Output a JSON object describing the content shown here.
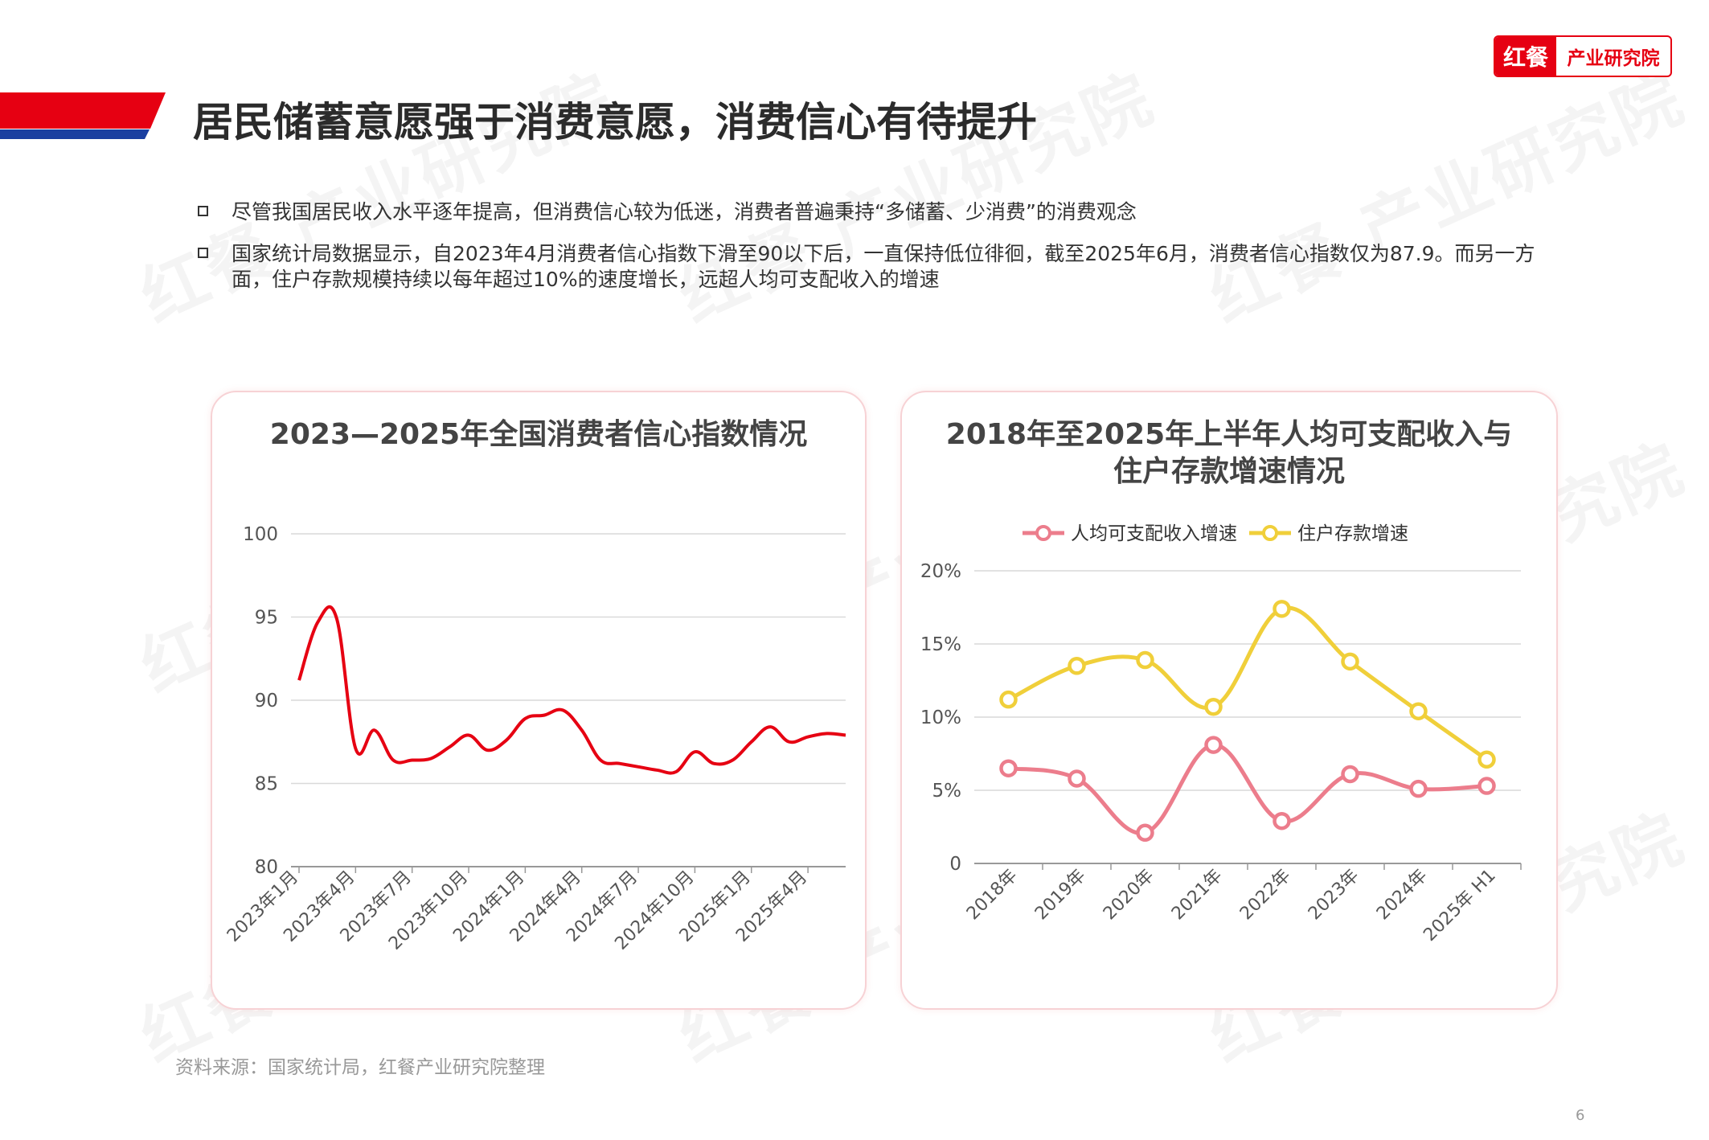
{
  "logo": {
    "badge": "红餐",
    "text": "产业研究院"
  },
  "watermark": {
    "badge": "红餐",
    "text": "产业研究院"
  },
  "page_title": "居民储蓄意愿强于消费意愿，消费信心有待提升",
  "bullets": [
    "尽管我国居民收入水平逐年提高，但消费信心较为低迷，消费者普遍秉持“多储蓄、少消费”的消费观念",
    "国家统计局数据显示，自2023年4月消费者信心指数下滑至90以下后，一直保持低位徘徊，截至2025年6月，消费者信心指数仅为87.9。而另一方面，住户存款规模持续以每年超过10%的速度增长，远超人均可支配收入的增速"
  ],
  "source": "资料来源：国家统计局，红餐产业研究院整理",
  "page_number": "6",
  "colors": {
    "brand_red": "#e60012",
    "brand_blue": "#1a3fa0",
    "line_red": "#e60012",
    "income_pink": "#ec7d8c",
    "deposit_yellow": "#f0cf3a"
  },
  "chart_data": [
    {
      "type": "line",
      "title": "2023—2025年全国消费者信心指数情况",
      "ylim": [
        80,
        100
      ],
      "yticks": [
        "100",
        "95",
        "90",
        "85",
        "80"
      ],
      "xtick_labels": [
        "2023年1月",
        "2023年4月",
        "2023年7月",
        "2023年10月",
        "2024年1月",
        "2024年4月",
        "2024年7月",
        "2024年10月",
        "2025年1月",
        "2025年4月"
      ],
      "x": [
        "2023-01",
        "2023-02",
        "2023-03",
        "2023-04",
        "2023-05",
        "2023-06",
        "2023-07",
        "2023-08",
        "2023-09",
        "2023-10",
        "2023-11",
        "2023-12",
        "2024-01",
        "2024-02",
        "2024-03",
        "2024-04",
        "2024-05",
        "2024-06",
        "2024-07",
        "2024-08",
        "2024-09",
        "2024-10",
        "2024-11",
        "2024-12",
        "2025-01",
        "2025-02",
        "2025-03",
        "2025-04",
        "2025-05",
        "2025-06"
      ],
      "series": [
        {
          "values": [
            91.2,
            94.7,
            94.9,
            87.1,
            88.2,
            86.4,
            86.4,
            86.5,
            87.2,
            87.9,
            87.0,
            87.6,
            88.9,
            89.1,
            89.4,
            88.2,
            86.4,
            86.2,
            86.0,
            85.8,
            85.7,
            86.9,
            86.2,
            86.4,
            87.5,
            88.4,
            87.5,
            87.8,
            88.0,
            87.9
          ]
        }
      ],
      "grid": true
    },
    {
      "type": "line",
      "title": "2018年至2025年上半年人均可支配收入与住户存款增速情况",
      "title_lines": [
        "2018年至2025年上半年人均可支配收入与",
        "住户存款增速情况"
      ],
      "categories": [
        "2018年",
        "2019年",
        "2020年",
        "2021年",
        "2022年",
        "2023年",
        "2024年",
        "2025年 H1"
      ],
      "ylim": [
        0,
        20
      ],
      "yticks": [
        "20%",
        "15%",
        "10%",
        "5%",
        "0"
      ],
      "legend": "top",
      "series": [
        {
          "name": "人均可支配收入增速",
          "values": [
            6.5,
            5.8,
            2.1,
            8.1,
            2.9,
            6.1,
            5.1,
            5.3
          ]
        },
        {
          "name": "住户存款增速",
          "values": [
            11.2,
            13.5,
            13.9,
            10.7,
            17.4,
            13.8,
            10.4,
            7.1
          ]
        }
      ],
      "grid": true
    }
  ]
}
